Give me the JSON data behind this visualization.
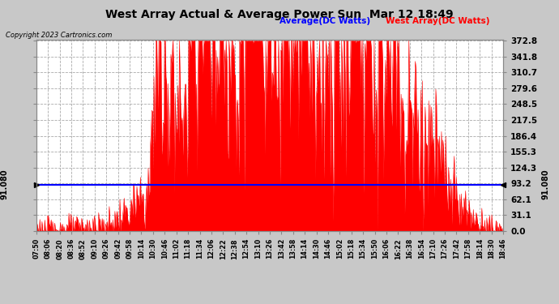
{
  "title": "West Array Actual & Average Power Sun  Mar 12 18:49",
  "copyright": "Copyright 2023 Cartronics.com",
  "legend_avg": "Average(DC Watts)",
  "legend_west": "West Array(DC Watts)",
  "avg_value": 91.08,
  "ymin": 0.0,
  "ymax": 372.8,
  "yticks": [
    0.0,
    31.1,
    62.1,
    93.2,
    124.3,
    155.3,
    186.4,
    217.5,
    248.5,
    279.6,
    310.7,
    341.8,
    372.8
  ],
  "background_color": "#c8c8c8",
  "plot_bg_color": "#ffffff",
  "grid_color": "#aaaaaa",
  "title_color": "#000000",
  "red_color": "#ff0000",
  "blue_color": "#0000ff",
  "avg_label_color": "#0000ff",
  "west_label_color": "#ff0000",
  "tick_label_color": "#000000",
  "copyright_color": "#000000",
  "left_avg_label": "91.080",
  "right_avg_label": "91.080",
  "xtick_labels": [
    "07:50",
    "08:06",
    "08:20",
    "08:36",
    "08:52",
    "09:10",
    "09:26",
    "09:42",
    "09:58",
    "10:14",
    "10:30",
    "10:46",
    "11:02",
    "11:18",
    "11:34",
    "12:06",
    "12:22",
    "12:38",
    "12:54",
    "13:10",
    "13:26",
    "13:42",
    "13:58",
    "14:14",
    "14:30",
    "14:46",
    "15:02",
    "15:18",
    "15:34",
    "15:50",
    "16:06",
    "16:22",
    "16:38",
    "16:54",
    "17:10",
    "17:26",
    "17:42",
    "17:58",
    "18:14",
    "18:30",
    "18:46"
  ],
  "num_points": 660
}
